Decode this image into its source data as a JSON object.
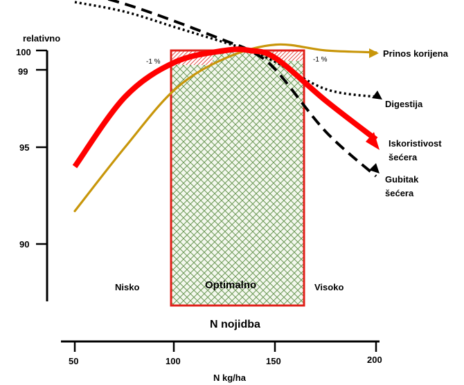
{
  "chart_data": {
    "type": "line",
    "ylabel": "relativno",
    "y_ticks": [
      "100",
      "99",
      "95",
      "90"
    ],
    "x_axis_title": "N nojidba",
    "x_ticks": [
      "50",
      "100",
      "150",
      "200"
    ],
    "xlabel": "N kg/ha",
    "zones": {
      "low": "Nisko",
      "optimal": "Optimalno",
      "high": "Visoko"
    },
    "optimal_range": [
      100,
      165
    ],
    "range_markers": [
      "-1 %",
      "-1 %"
    ],
    "series": [
      {
        "name": "Prinos korijena",
        "color": "#c8960a",
        "style": "solid",
        "points": [
          [
            50,
            91.7
          ],
          [
            75,
            95.0
          ],
          [
            100,
            98.0
          ],
          [
            125,
            99.6
          ],
          [
            150,
            100.3
          ],
          [
            175,
            100.0
          ],
          [
            200,
            99.9
          ]
        ]
      },
      {
        "name": "Digestija",
        "color": "#000000",
        "style": "dotted",
        "points": [
          [
            50,
            102.5
          ],
          [
            75,
            102.0
          ],
          [
            100,
            101.2
          ],
          [
            125,
            100.4
          ],
          [
            137,
            100.0
          ],
          [
            150,
            99.4
          ],
          [
            175,
            98.0
          ],
          [
            200,
            97.6
          ]
        ]
      },
      {
        "name": "Iskoristivost šećera",
        "color": "#ff0000",
        "style": "solid-thick",
        "points": [
          [
            50,
            94.0
          ],
          [
            75,
            97.6
          ],
          [
            100,
            99.4
          ],
          [
            125,
            100.0
          ],
          [
            137,
            100.0
          ],
          [
            150,
            99.6
          ],
          [
            175,
            97.4
          ],
          [
            200,
            95.4
          ]
        ]
      },
      {
        "name": "Gubitak\nšećera",
        "color": "#000000",
        "style": "dashed",
        "points": [
          [
            50,
            103.1
          ],
          [
            75,
            102.4
          ],
          [
            100,
            101.5
          ],
          [
            125,
            100.5
          ],
          [
            137,
            100.0
          ],
          [
            150,
            99.0
          ],
          [
            175,
            95.8
          ],
          [
            200,
            93.5
          ]
        ]
      }
    ],
    "series_labels": {
      "prinos": "Prinos korijena",
      "digestija": "Digestija",
      "iskoristivost_1": "Iskoristivost",
      "iskoristivost_2": "šećera",
      "gubitak_1": "Gubitak",
      "gubitak_2": "šećera"
    },
    "colors": {
      "optimal_border": "#e0201a",
      "optimal_hatch": "#6f9b5a",
      "optimal_fill": "#f4f8ee"
    }
  }
}
